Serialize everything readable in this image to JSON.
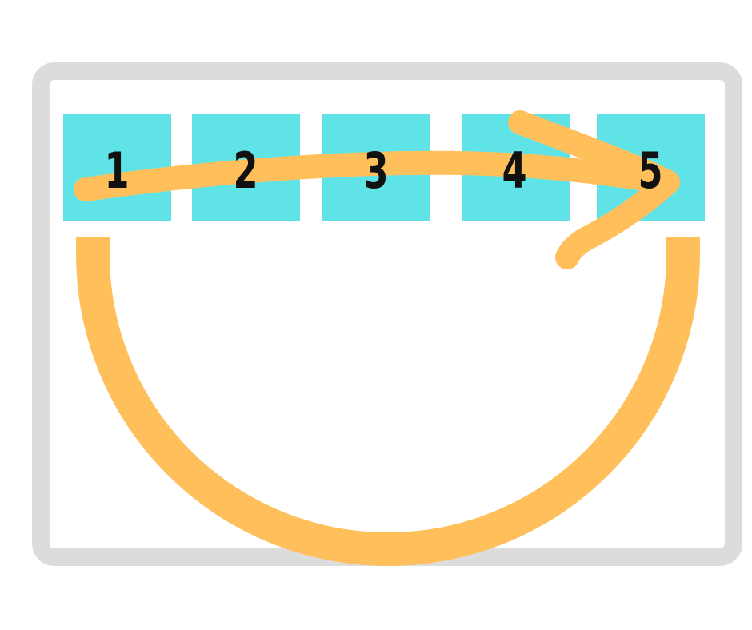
{
  "slots": [
    {
      "label": "1"
    },
    {
      "label": "2"
    },
    {
      "label": "3"
    },
    {
      "label": "4"
    },
    {
      "label": "5"
    }
  ],
  "colors": {
    "slot": "#5fe3e6",
    "arrow": "#ffbf5b",
    "frame": "#dcdcdc",
    "number": "#111111"
  },
  "icons": [
    "forward-arrow-icon",
    "return-arc-icon"
  ]
}
